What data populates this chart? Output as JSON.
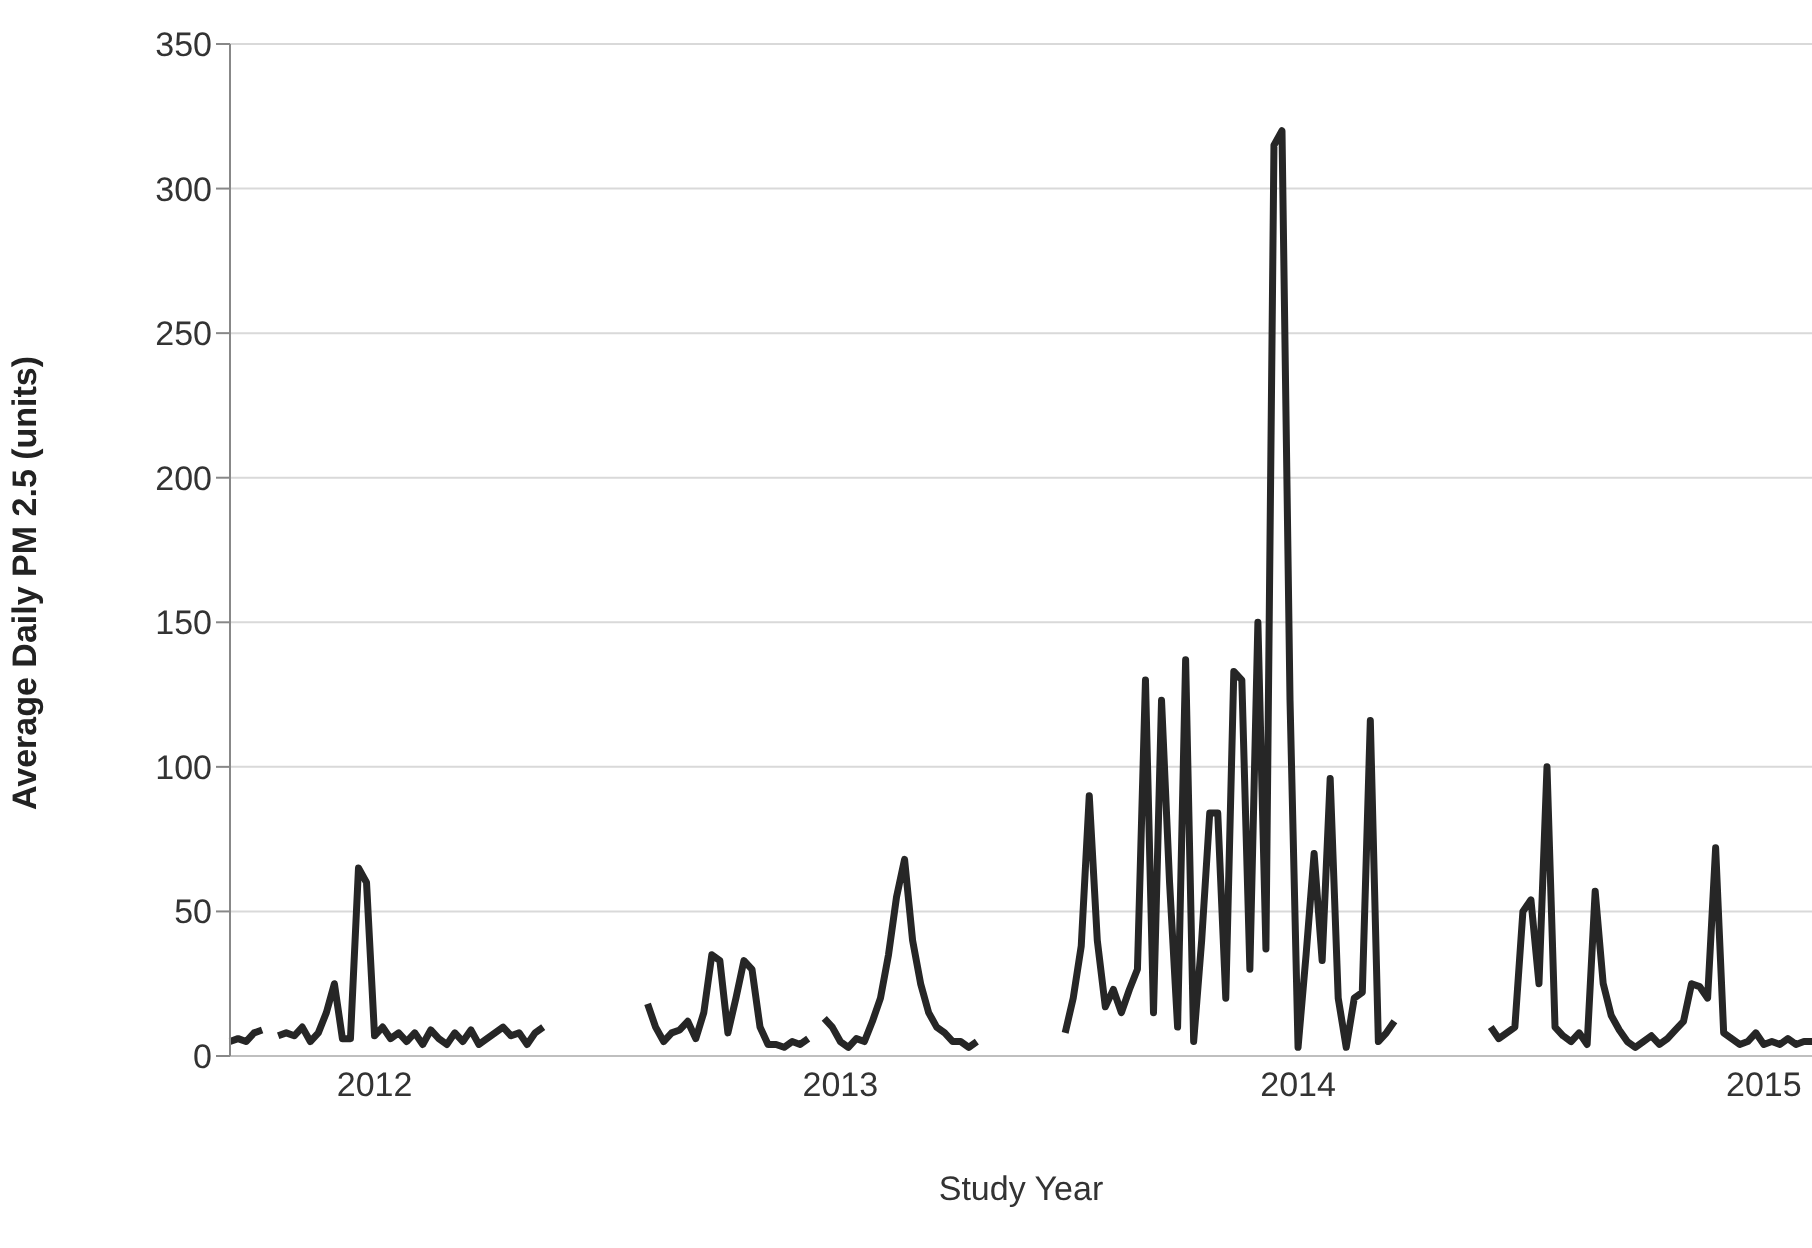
{
  "chart_data": {
    "type": "line",
    "xlabel": "Study Year",
    "ylabel": "Average Daily PM 2.5 (units)",
    "categories": [
      null,
      null,
      null,
      null,
      null,
      null,
      null,
      null,
      null,
      null,
      null,
      null,
      null,
      null,
      null,
      null,
      null,
      null,
      "2012",
      null,
      null,
      null,
      null,
      null,
      null,
      null,
      null,
      null,
      null,
      null,
      null,
      null,
      null,
      null,
      null,
      null,
      null,
      null,
      null,
      null,
      null,
      null,
      null,
      null,
      null,
      null,
      null,
      null,
      null,
      null,
      null,
      null,
      null,
      null,
      null,
      null,
      null,
      null,
      null,
      null,
      null,
      null,
      null,
      null,
      null,
      null,
      null,
      null,
      null,
      null,
      null,
      null,
      null,
      null,
      null,
      null,
      "2013",
      null,
      null,
      null,
      null,
      null,
      null,
      null,
      null,
      null,
      null,
      null,
      null,
      null,
      null,
      null,
      null,
      null,
      null,
      null,
      null,
      null,
      null,
      null,
      null,
      null,
      null,
      null,
      null,
      null,
      null,
      null,
      null,
      null,
      null,
      null,
      null,
      null,
      null,
      null,
      null,
      null,
      null,
      null,
      null,
      null,
      null,
      null,
      null,
      null,
      null,
      null,
      null,
      null,
      null,
      null,
      null,
      "2014",
      null,
      null,
      null,
      null,
      null,
      null,
      null,
      null,
      null,
      null,
      null,
      null,
      null,
      null,
      null,
      null,
      null,
      null,
      null,
      null,
      null,
      null,
      null,
      null,
      null,
      null,
      null,
      null,
      null,
      null,
      null,
      null,
      null,
      null,
      null,
      null,
      null,
      null,
      null,
      null,
      null,
      null,
      null,
      null,
      null,
      null,
      null,
      null,
      null,
      null,
      null,
      null,
      null,
      null,
      null,
      null,
      null,
      "2015",
      null,
      null,
      null,
      null,
      null,
      null
    ],
    "series": [
      {
        "color": "#262626",
        "values": [
          5,
          6,
          5,
          8,
          9,
          null,
          7,
          8,
          7,
          10,
          5,
          8,
          15,
          25,
          6,
          6,
          65,
          60,
          7,
          10,
          6,
          8,
          5,
          8,
          4,
          9,
          6,
          4,
          8,
          5,
          9,
          4,
          6,
          8,
          10,
          7,
          8,
          4,
          8,
          10,
          null,
          null,
          null,
          null,
          null,
          null,
          null,
          null,
          null,
          null,
          null,
          null,
          18,
          10,
          5,
          8,
          9,
          12,
          6,
          15,
          35,
          33,
          8,
          20,
          33,
          30,
          10,
          4,
          4,
          3,
          5,
          4,
          6,
          null,
          13,
          10,
          5,
          3,
          6,
          5,
          12,
          20,
          35,
          55,
          68,
          40,
          25,
          15,
          10,
          8,
          5,
          5,
          3,
          5,
          null,
          null,
          null,
          null,
          null,
          null,
          null,
          null,
          null,
          null,
          8,
          20,
          38,
          90,
          40,
          17,
          23,
          15,
          23,
          30,
          130,
          15,
          123,
          60,
          10,
          137,
          5,
          40,
          84,
          84,
          20,
          133,
          130,
          30,
          150,
          37,
          315,
          320,
          123,
          3,
          35,
          70,
          33,
          96,
          20,
          3,
          20,
          22,
          116,
          5,
          8,
          12,
          null,
          null,
          null,
          null,
          null,
          null,
          null,
          null,
          null,
          null,
          null,
          10,
          6,
          8,
          10,
          50,
          54,
          25,
          100,
          10,
          7,
          5,
          8,
          4,
          57,
          25,
          14,
          9,
          5,
          3,
          5,
          7,
          4,
          6,
          9,
          12,
          25,
          24,
          20,
          72,
          8,
          6,
          4,
          5,
          8,
          4,
          5,
          4,
          6,
          4,
          5,
          5
        ]
      }
    ],
    "ylim": [
      0,
      350
    ],
    "yticks": [
      0,
      50,
      100,
      150,
      200,
      250,
      300,
      350
    ],
    "grid": "y",
    "legend": false,
    "marker": "none",
    "line_style": "solid"
  }
}
